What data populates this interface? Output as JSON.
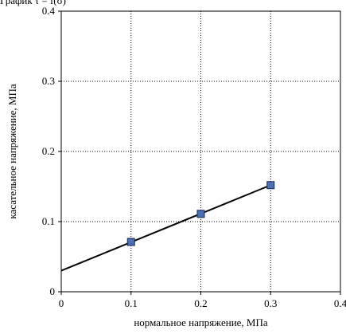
{
  "title": "График τ = f(σ)",
  "chart_data": {
    "type": "scatter",
    "xlabel": "нормальное напряжение, МПа",
    "ylabel": "касательное напряжение, МПа",
    "xlim": [
      0,
      0.4
    ],
    "ylim": [
      0,
      0.4
    ],
    "x_ticks": [
      "0",
      "0.1",
      "0.2",
      "0.3",
      "0.4"
    ],
    "y_ticks": [
      "0",
      "0.1",
      "0.2",
      "0.3",
      "0.4"
    ],
    "grid": true,
    "series": [
      {
        "type": "scatter",
        "x": [
          0.1,
          0.2,
          0.3
        ],
        "y": [
          0.071,
          0.111,
          0.152
        ],
        "marker": "square",
        "color": "#4a6fb5"
      },
      {
        "type": "line",
        "x": [
          0.0,
          0.3
        ],
        "y": [
          0.03,
          0.152
        ],
        "color": "#000000"
      }
    ]
  }
}
